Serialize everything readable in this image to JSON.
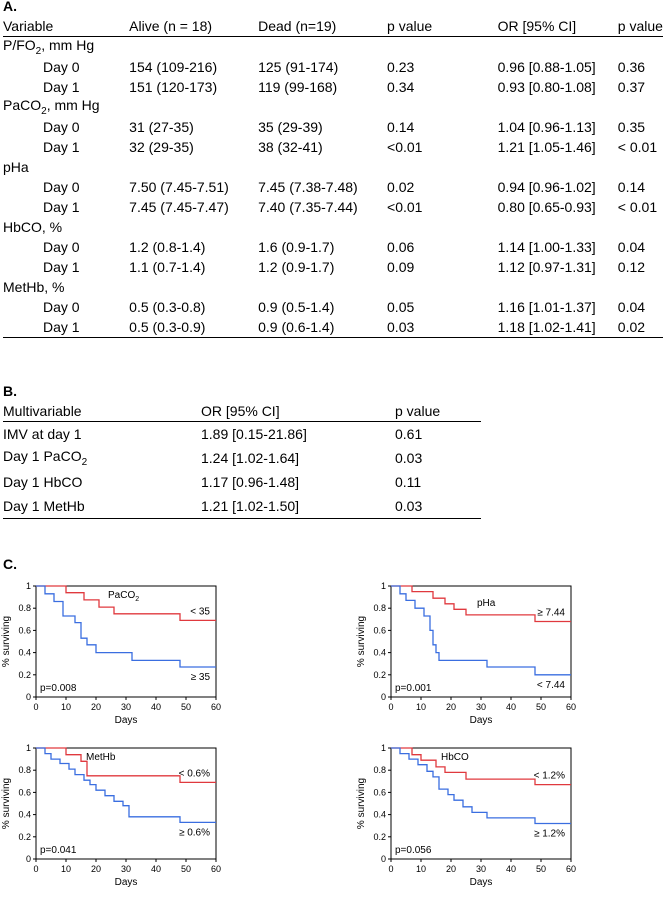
{
  "sectionA": {
    "label": "A.",
    "headers": [
      "Variable",
      "Alive (n = 18)",
      "Dead (n=19)",
      "p value",
      "OR [95% CI]",
      "p value"
    ],
    "groups": [
      {
        "name": "P/FO",
        "sub": "2",
        "suffix": ", mm Hg",
        "rows": [
          {
            "day": "Day 0",
            "alive": "154 (109-216)",
            "dead": "125 (91-174)",
            "p1": "0.23",
            "or": "0.96 [0.88-1.05]",
            "p2": "0.36"
          },
          {
            "day": "Day 1",
            "alive": "151 (120-173)",
            "dead": "119 (99-168)",
            "p1": "0.34",
            "or": "0.93 [0.80-1.08]",
            "p2": "0.37"
          }
        ]
      },
      {
        "name": "PaCO",
        "sub": "2",
        "suffix": ", mm Hg",
        "rows": [
          {
            "day": "Day 0",
            "alive": "31 (27-35)",
            "dead": "35 (29-39)",
            "p1": "0.14",
            "or": "1.04 [0.96-1.13]",
            "p2": "0.35"
          },
          {
            "day": "Day 1",
            "alive": "32 (29-35)",
            "dead": "38 (32-41)",
            "p1": "<0.01",
            "or": "1.21 [1.05-1.46]",
            "p2": "< 0.01"
          }
        ]
      },
      {
        "name": "pHa",
        "sub": "",
        "suffix": "",
        "rows": [
          {
            "day": "Day 0",
            "alive": "7.50 (7.45-7.51)",
            "dead": "7.45 (7.38-7.48)",
            "p1": "0.02",
            "or": "0.94 [0.96-1.02]",
            "p2": "0.14"
          },
          {
            "day": "Day 1",
            "alive": "7.45 (7.45-7.47)",
            "dead": "7.40 (7.35-7.44)",
            "p1": "<0.01",
            "or": "0.80 [0.65-0.93]",
            "p2": "< 0.01"
          }
        ]
      },
      {
        "name": "HbCO, %",
        "sub": "",
        "suffix": "",
        "rows": [
          {
            "day": "Day 0",
            "alive": "1.2 (0.8-1.4)",
            "dead": "1.6 (0.9-1.7)",
            "p1": "0.06",
            "or": "1.14 [1.00-1.33]",
            "p2": "0.04"
          },
          {
            "day": "Day 1",
            "alive": "1.1 (0.7-1.4)",
            "dead": "1.2 (0.9-1.7)",
            "p1": "0.09",
            "or": "1.12 [0.97-1.31]",
            "p2": "0.12"
          }
        ]
      },
      {
        "name": "MetHb, %",
        "sub": "",
        "suffix": "",
        "rows": [
          {
            "day": "Day 0",
            "alive": "0.5 (0.3-0.8)",
            "dead": "0.9 (0.5-1.4)",
            "p1": "0.05",
            "or": "1.16 [1.01-1.37]",
            "p2": "0.04"
          },
          {
            "day": "Day 1",
            "alive": "0.5 (0.3-0.9)",
            "dead": "0.9 (0.6-1.4)",
            "p1": "0.03",
            "or": "1.18 [1.02-1.41]",
            "p2": "0.02"
          }
        ]
      }
    ]
  },
  "sectionB": {
    "label": "B.",
    "headers": [
      "Multivariable",
      "OR [95% CI]",
      "p value"
    ],
    "rows": [
      {
        "name": "IMV at day 1",
        "sub": "",
        "or": "1.89 [0.15-21.86]",
        "p": "0.61"
      },
      {
        "name": "Day 1 PaCO",
        "sub": "2",
        "or": "1.24 [1.02-1.64]",
        "p": "0.03"
      },
      {
        "name": "Day 1 HbCO",
        "sub": "",
        "or": "1.17 [0.96-1.48]",
        "p": "0.11"
      },
      {
        "name": "Day 1 MetHb",
        "sub": "",
        "or": "1.21 [1.02-1.50]",
        "p": "0.03"
      }
    ]
  },
  "sectionC": {
    "label": "C."
  },
  "colors": {
    "red": "#e0393e",
    "blue": "#3a6ee0"
  },
  "chart_data": [
    {
      "type": "line",
      "name": "PaCO2 survival",
      "title": "PaCO",
      "title_sub": "2",
      "xlabel": "Days",
      "ylabel": "% surviving",
      "xlim": [
        0,
        60
      ],
      "ylim": [
        0,
        1.0
      ],
      "xticks": [
        0,
        10,
        20,
        30,
        40,
        50,
        60
      ],
      "yticks": [
        0,
        0.2,
        0.4,
        0.6,
        0.8,
        1.0
      ],
      "pvalue": "p=0.008",
      "series": [
        {
          "name": "< 35",
          "color": "#e0393e",
          "x": [
            0,
            10,
            10,
            16,
            16,
            21,
            21,
            26,
            26,
            48,
            48,
            60
          ],
          "y": [
            1.0,
            1.0,
            0.94,
            0.94,
            0.875,
            0.875,
            0.81,
            0.81,
            0.75,
            0.75,
            0.69,
            0.69
          ]
        },
        {
          "name": "≥ 35",
          "color": "#3a6ee0",
          "x": [
            0,
            3,
            3,
            6,
            6,
            9,
            9,
            13,
            13,
            15,
            15,
            17,
            17,
            20,
            20,
            26,
            26,
            32,
            32,
            48,
            48,
            60
          ],
          "y": [
            1.0,
            1.0,
            0.93,
            0.93,
            0.86,
            0.86,
            0.73,
            0.73,
            0.67,
            0.67,
            0.53,
            0.53,
            0.47,
            0.47,
            0.4,
            0.4,
            0.4,
            0.4,
            0.33,
            0.33,
            0.27,
            0.27
          ]
        }
      ]
    },
    {
      "type": "line",
      "name": "pHa survival",
      "title": "pHa",
      "title_sub": "",
      "xlabel": "Days",
      "ylabel": "% surviving",
      "xlim": [
        0,
        60
      ],
      "ylim": [
        0,
        1.0
      ],
      "xticks": [
        0,
        10,
        20,
        30,
        40,
        50,
        60
      ],
      "yticks": [
        0,
        0.2,
        0.4,
        0.6,
        0.8,
        1.0
      ],
      "pvalue": "p=0.001",
      "series": [
        {
          "name": "≥ 7.44",
          "color": "#e0393e",
          "x": [
            0,
            7,
            7,
            14,
            14,
            18,
            18,
            21,
            21,
            25,
            25,
            48,
            48,
            60
          ],
          "y": [
            1.0,
            1.0,
            0.95,
            0.95,
            0.89,
            0.89,
            0.84,
            0.84,
            0.79,
            0.79,
            0.74,
            0.74,
            0.68,
            0.68
          ]
        },
        {
          "name": "< 7.44",
          "color": "#3a6ee0",
          "x": [
            0,
            3,
            3,
            5,
            5,
            8,
            8,
            11,
            11,
            13,
            13,
            14,
            14,
            15,
            15,
            16,
            16,
            18,
            18,
            32,
            32,
            48,
            48,
            60
          ],
          "y": [
            1.0,
            1.0,
            0.93,
            0.93,
            0.87,
            0.87,
            0.8,
            0.8,
            0.73,
            0.73,
            0.6,
            0.6,
            0.47,
            0.47,
            0.4,
            0.4,
            0.33,
            0.33,
            0.33,
            0.33,
            0.27,
            0.27,
            0.2,
            0.2
          ]
        }
      ]
    },
    {
      "type": "line",
      "name": "MetHb survival",
      "title": "MetHb",
      "title_sub": "",
      "xlabel": "Days",
      "ylabel": "% surviving",
      "xlim": [
        0,
        60
      ],
      "ylim": [
        0,
        1.0
      ],
      "xticks": [
        0,
        10,
        20,
        30,
        40,
        50,
        60
      ],
      "yticks": [
        0,
        0.2,
        0.4,
        0.6,
        0.8,
        1.0
      ],
      "pvalue": "p=0.041",
      "series": [
        {
          "name": "< 0.6%",
          "color": "#e0393e",
          "x": [
            0,
            10,
            10,
            15,
            15,
            17,
            17,
            48,
            48,
            60
          ],
          "y": [
            1.0,
            1.0,
            0.94,
            0.94,
            0.88,
            0.88,
            0.75,
            0.75,
            0.69,
            0.69
          ]
        },
        {
          "name": "≥ 0.6%",
          "color": "#3a6ee0",
          "x": [
            0,
            3,
            3,
            5,
            5,
            8,
            8,
            11,
            11,
            13,
            13,
            16,
            16,
            18,
            18,
            20,
            20,
            23,
            23,
            26,
            26,
            29,
            29,
            31,
            31,
            48,
            48,
            60
          ],
          "y": [
            1.0,
            1.0,
            0.95,
            0.95,
            0.9,
            0.9,
            0.86,
            0.86,
            0.81,
            0.81,
            0.76,
            0.76,
            0.71,
            0.71,
            0.67,
            0.67,
            0.62,
            0.62,
            0.57,
            0.57,
            0.52,
            0.52,
            0.48,
            0.48,
            0.38,
            0.38,
            0.33,
            0.33
          ]
        }
      ]
    },
    {
      "type": "line",
      "name": "HbCO survival",
      "title": "HbCO",
      "title_sub": "",
      "xlabel": "Days",
      "ylabel": "% surviving",
      "xlim": [
        0,
        60
      ],
      "ylim": [
        0,
        1.0
      ],
      "xticks": [
        0,
        10,
        20,
        30,
        40,
        50,
        60
      ],
      "yticks": [
        0,
        0.2,
        0.4,
        0.6,
        0.8,
        1.0
      ],
      "pvalue": "p=0.056",
      "series": [
        {
          "name": "< 1.2%",
          "color": "#e0393e",
          "x": [
            0,
            7,
            7,
            10,
            10,
            15,
            15,
            18,
            18,
            25,
            25,
            48,
            48,
            60
          ],
          "y": [
            1.0,
            1.0,
            0.94,
            0.94,
            0.89,
            0.89,
            0.83,
            0.83,
            0.78,
            0.78,
            0.72,
            0.72,
            0.67,
            0.67
          ]
        },
        {
          "name": "≥ 1.2%",
          "color": "#3a6ee0",
          "x": [
            0,
            3,
            3,
            6,
            6,
            9,
            9,
            12,
            12,
            14,
            14,
            16,
            16,
            19,
            19,
            21,
            21,
            24,
            24,
            27,
            27,
            32,
            32,
            48,
            48,
            60
          ],
          "y": [
            1.0,
            1.0,
            0.95,
            0.95,
            0.9,
            0.9,
            0.85,
            0.85,
            0.79,
            0.79,
            0.74,
            0.74,
            0.63,
            0.63,
            0.58,
            0.58,
            0.53,
            0.53,
            0.47,
            0.47,
            0.42,
            0.42,
            0.37,
            0.37,
            0.32,
            0.32
          ]
        }
      ]
    }
  ]
}
